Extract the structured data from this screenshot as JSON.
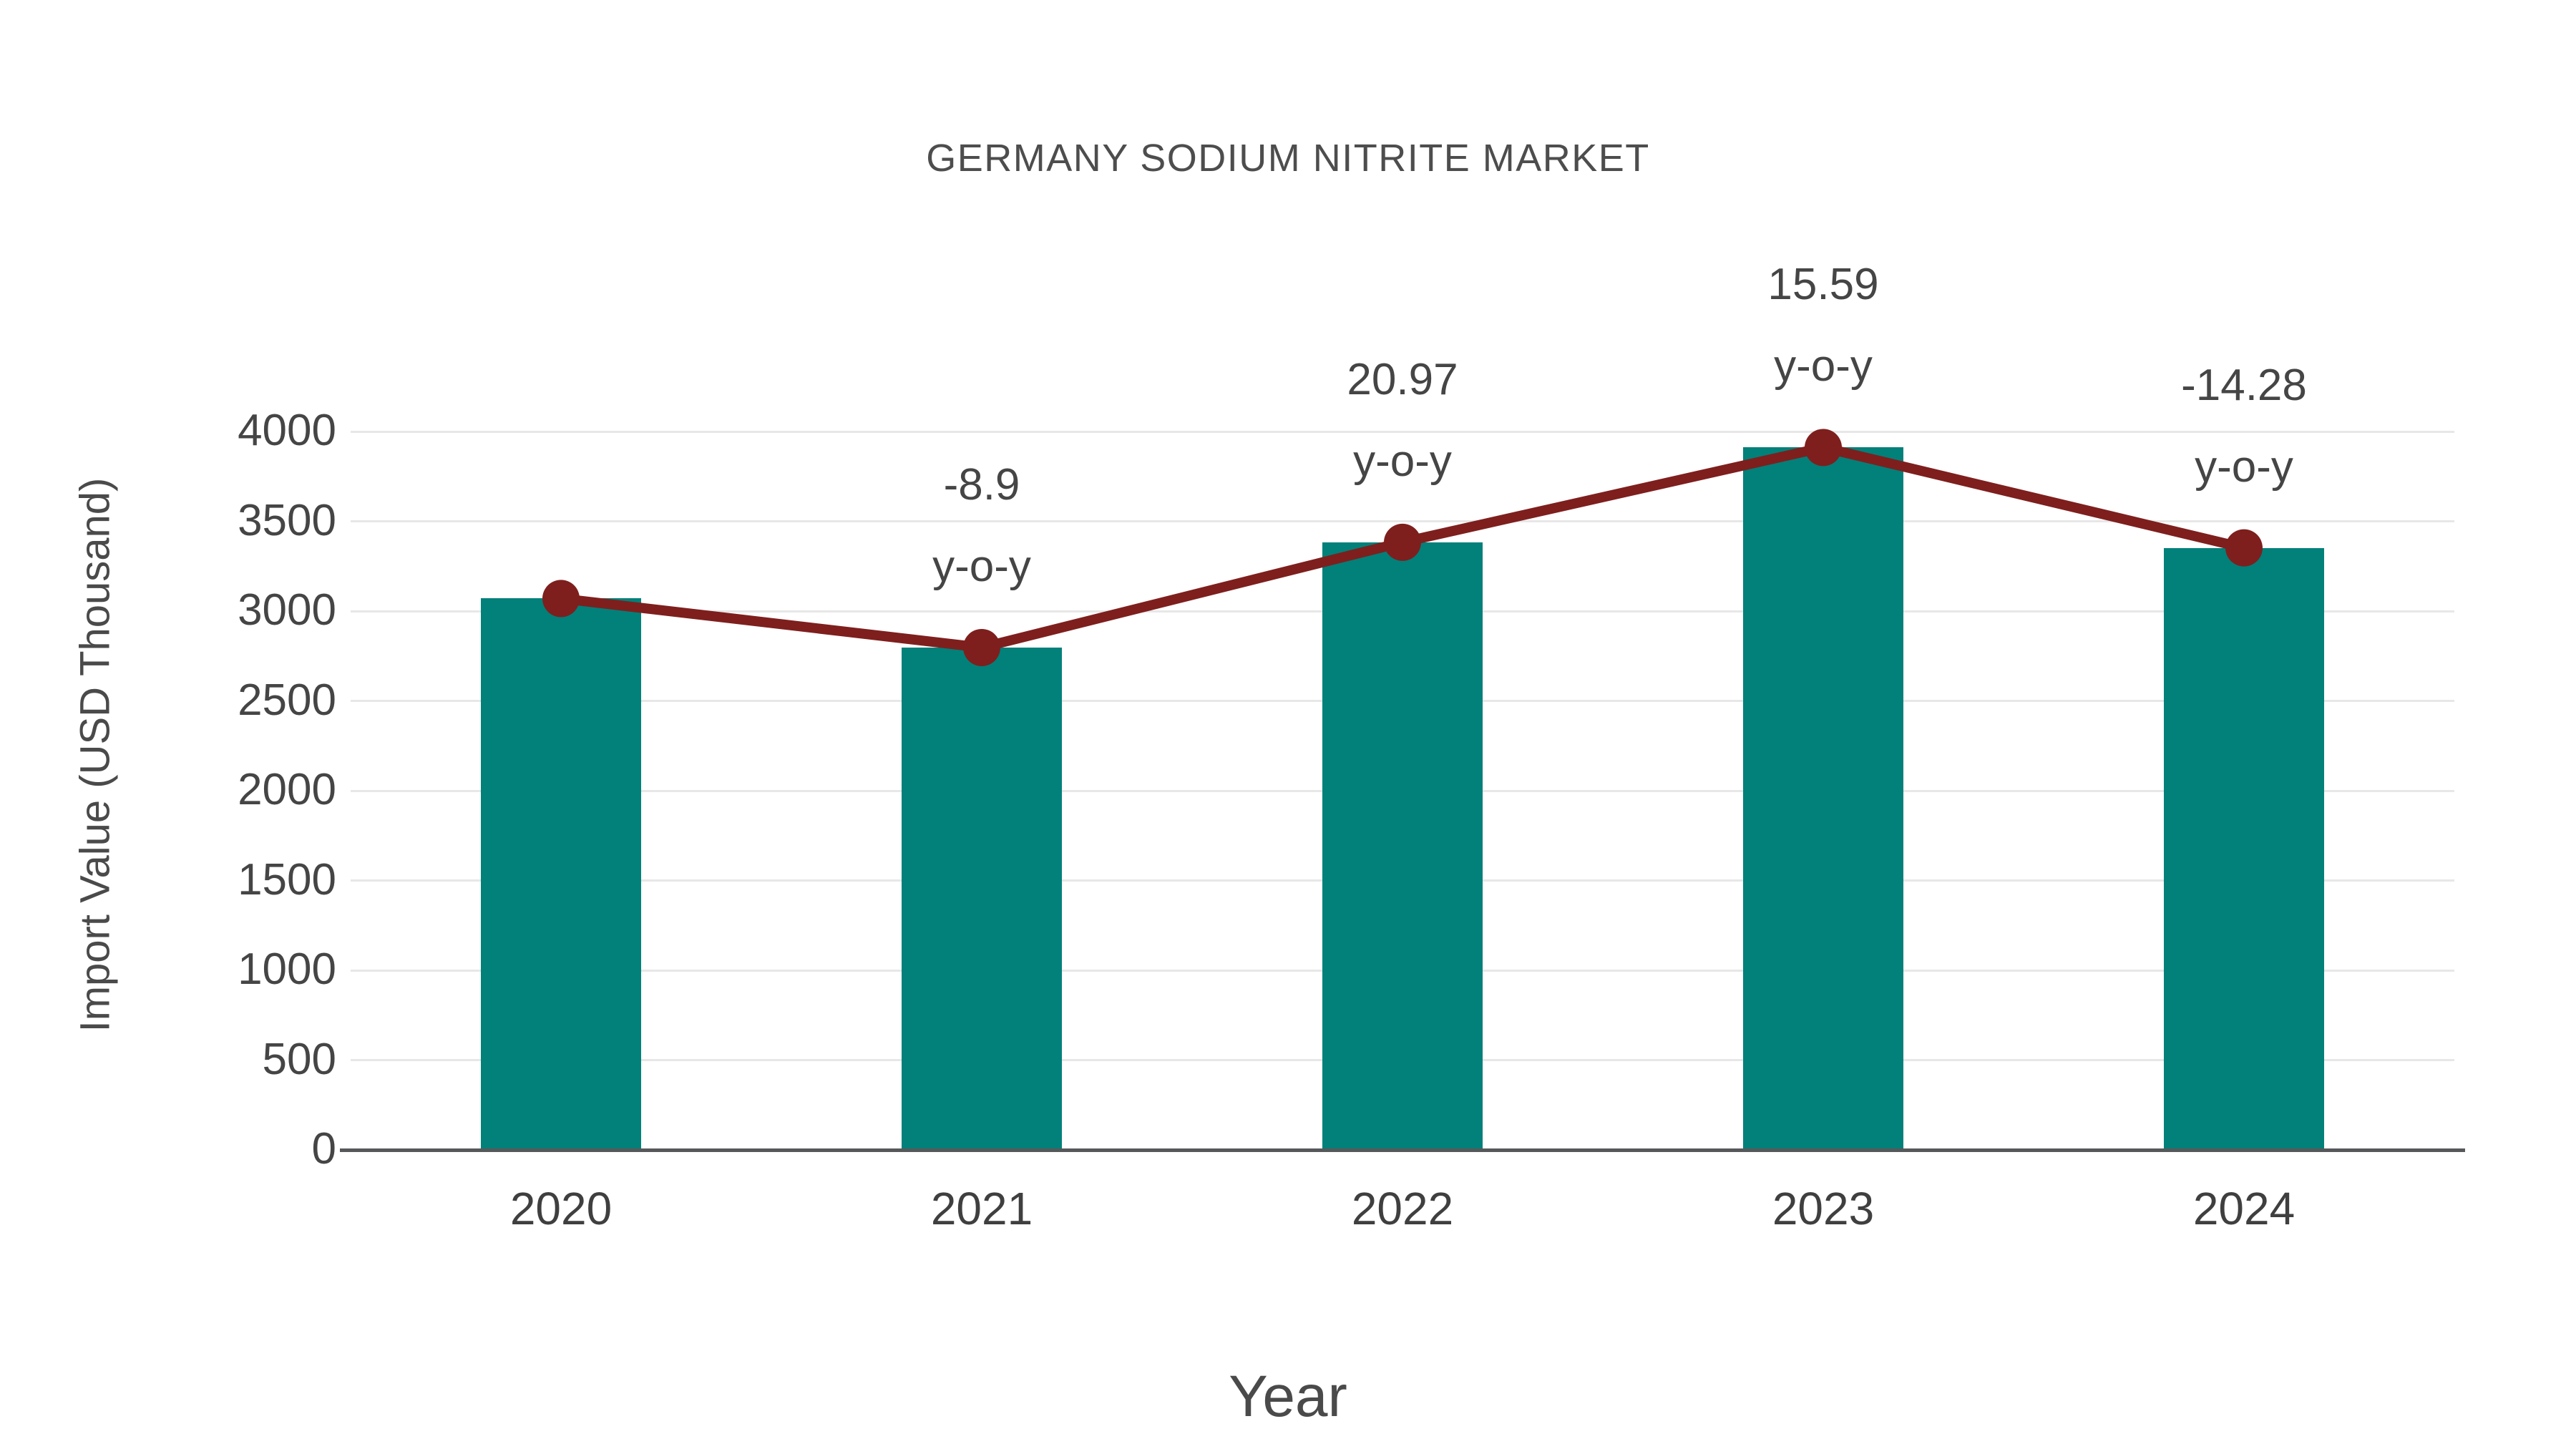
{
  "chart_data": {
    "type": "combo-bar-line",
    "title": "GERMANY SODIUM NITRITE MARKET",
    "xlabel": "Year",
    "ylabel": "Import Value (USD Thousand)",
    "categories": [
      "2020",
      "2021",
      "2022",
      "2023",
      "2024"
    ],
    "series": [
      {
        "name": "Import Value bars",
        "type": "bar",
        "color": "#02807a",
        "values": [
          3070,
          2797,
          3383,
          3911,
          3352
        ]
      },
      {
        "name": "Import Value trend line",
        "type": "line",
        "color": "#7e1f1d",
        "values": [
          3070,
          2797,
          3383,
          3911,
          3352
        ]
      }
    ],
    "annotations": [
      {
        "category": "2021",
        "value_label": "-8.9",
        "suffix": "y-o-y"
      },
      {
        "category": "2022",
        "value_label": "20.97",
        "suffix": "y-o-y"
      },
      {
        "category": "2023",
        "value_label": "15.59",
        "suffix": "y-o-y"
      },
      {
        "category": "2024",
        "value_label": "-14.28",
        "suffix": "y-o-y"
      }
    ],
    "ylim": [
      0,
      4000
    ],
    "ytick_step": 500,
    "grid": true,
    "legend_position": "none",
    "colors": {
      "bar": "#02807a",
      "line": "#7e1f1d",
      "marker": "#7e1f1d",
      "text": "#4a4a4a",
      "grid": "#e7e7e7",
      "axis": "#57585a",
      "background": "#ffffff"
    }
  }
}
